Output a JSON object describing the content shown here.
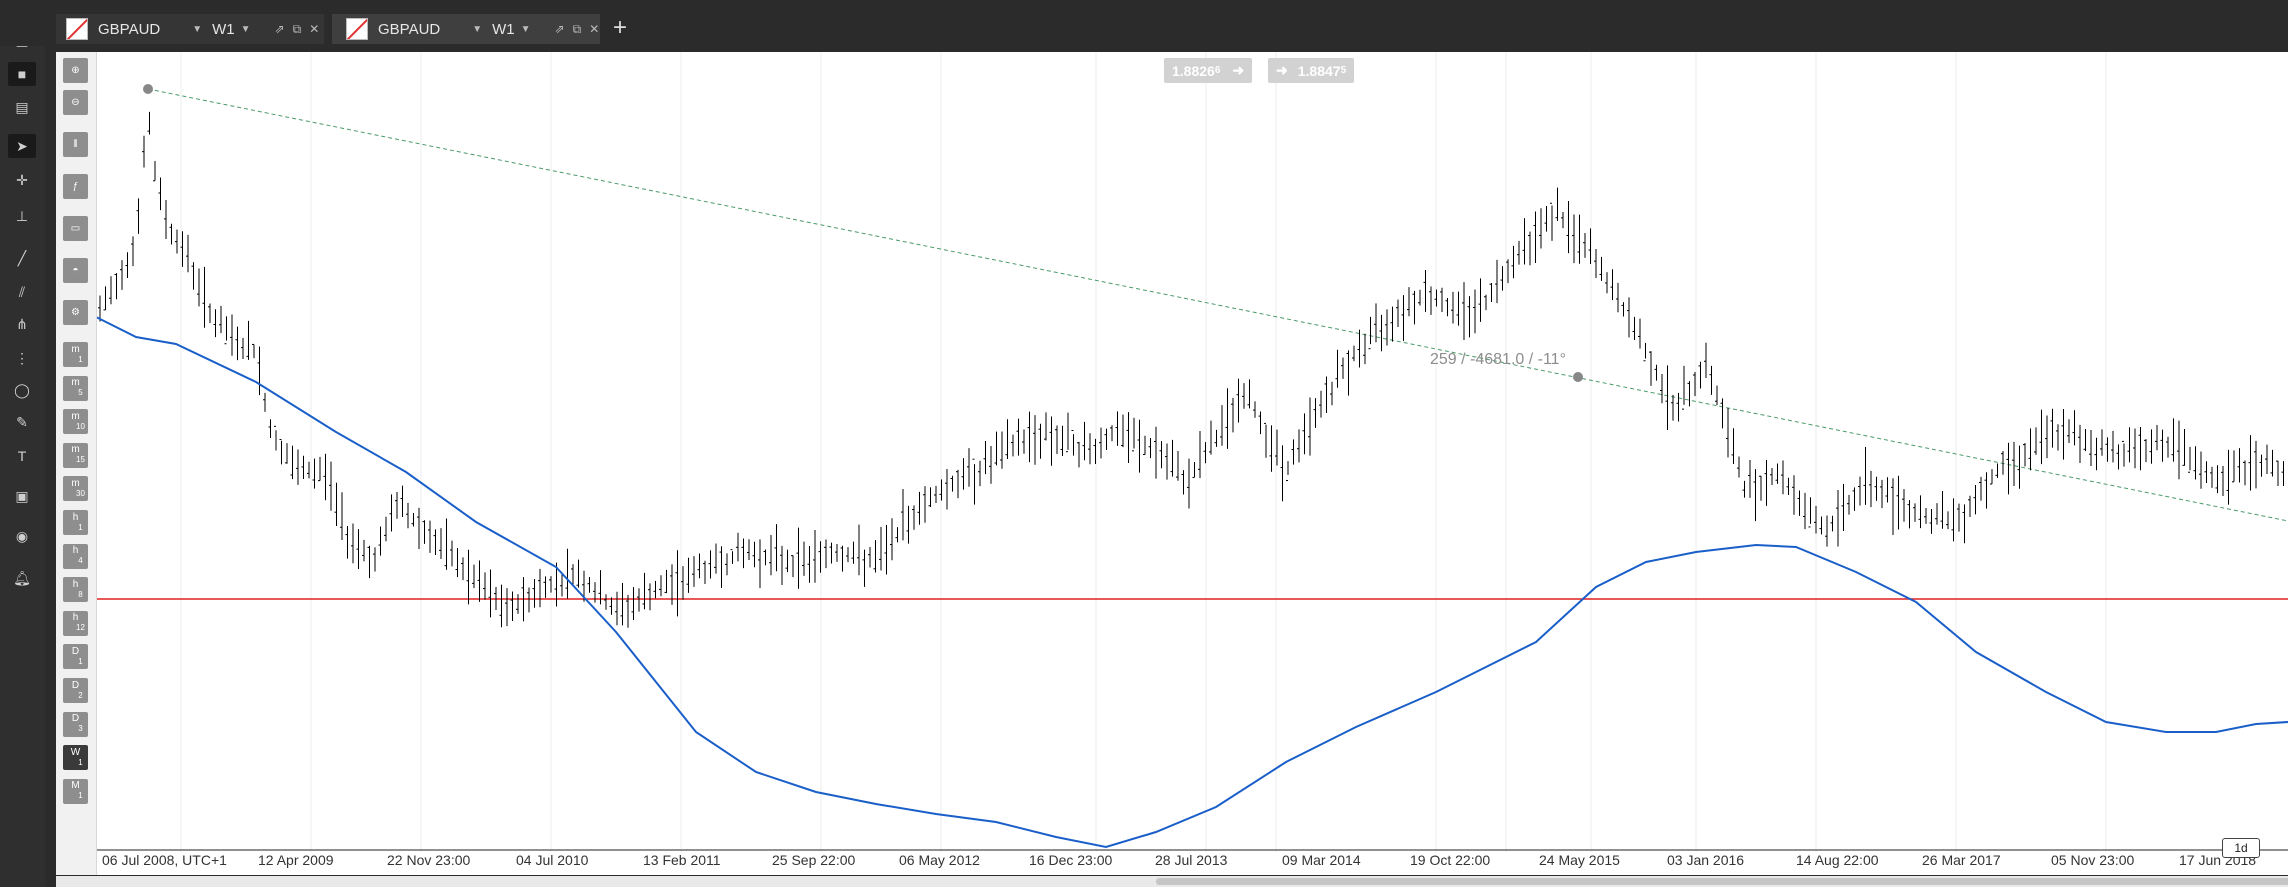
{
  "tabs": [
    {
      "symbol": "GBPAUD",
      "timeframe": "W1",
      "active": false
    },
    {
      "symbol": "GBPAUD",
      "timeframe": "W1",
      "active": true
    }
  ],
  "price_tags": {
    "bid": "1.8826",
    "bid_suffix": "6",
    "ask": "1.8847",
    "ask_suffix": "5"
  },
  "trendline_label": "259 / -4681.0 / -11°",
  "x_axis_labels": [
    "06 Jul 2008, UTC+1",
    "12 Apr 2009",
    "22 Nov 23:00",
    "04 Jul 2010",
    "13 Feb 2011",
    "25 Sep 22:00",
    "06 May 2012",
    "16 Dec 23:00",
    "28 Jul 2013",
    "09 Mar 2014",
    "19 Oct 22:00",
    "24 May 2015",
    "03 Jan 2016",
    "14 Aug 22:00",
    "26 Mar 2017",
    "05 Nov 23:00",
    "17 Jun 2018"
  ],
  "period_buttons": [
    {
      "u": "m",
      "n": "1"
    },
    {
      "u": "m",
      "n": "5"
    },
    {
      "u": "m",
      "n": "10"
    },
    {
      "u": "m",
      "n": "15"
    },
    {
      "u": "m",
      "n": "30"
    },
    {
      "u": "h",
      "n": "1"
    },
    {
      "u": "h",
      "n": "4"
    },
    {
      "u": "h",
      "n": "8"
    },
    {
      "u": "h",
      "n": "12"
    },
    {
      "u": "D",
      "n": "1"
    },
    {
      "u": "D",
      "n": "2"
    },
    {
      "u": "D",
      "n": "3"
    },
    {
      "u": "W",
      "n": "1"
    },
    {
      "u": "M",
      "n": "1"
    }
  ],
  "timeframe_tag": "1d",
  "colors": {
    "candle": "#000000",
    "moving_average": "#1a5fc9",
    "horizontal_line": "#e02020",
    "trendline": "#4a9a6a"
  }
}
